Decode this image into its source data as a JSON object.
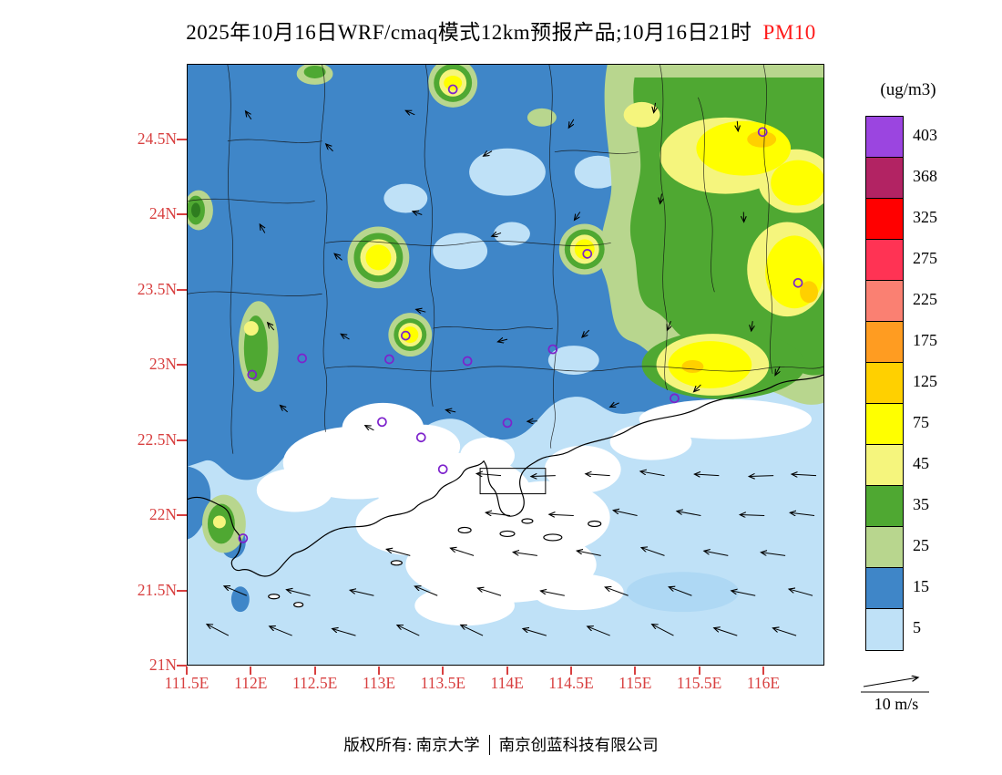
{
  "title": {
    "prefix": "2025年10月16日WRF/cmaq模式12km预报产品;10月16日21时",
    "pollutant": "PM10"
  },
  "axes": {
    "lat_labels": [
      "24.5N",
      "24N",
      "23.5N",
      "23N",
      "22.5N",
      "22N",
      "21.5N",
      "21N"
    ],
    "lon_labels": [
      "111.5E",
      "112E",
      "112.5E",
      "113E",
      "113.5E",
      "114E",
      "114.5E",
      "115E",
      "115.5E",
      "116E"
    ]
  },
  "legend": {
    "unit": "(ug/m3)",
    "levels": [
      "403",
      "368",
      "325",
      "275",
      "225",
      "175",
      "125",
      "75",
      "45",
      "35",
      "25",
      "15",
      "5"
    ],
    "colors": [
      "#9b45e0",
      "#b22363",
      "#ff0000",
      "#ff3354",
      "#fa8072",
      "#ff9c21",
      "#ffd000",
      "#ffff00",
      "#f5f57d",
      "#4fa832",
      "#b8d68e",
      "#3f86c8",
      "#bfe1f7"
    ]
  },
  "wind_scale": {
    "label": "10 m/s"
  },
  "footer": {
    "owner": "版权所有: 南京大学",
    "company": "南京创蓝科技有限公司"
  },
  "colors": {
    "axis_label": "#d84040",
    "pollutant_highlight": "#ff1a1a",
    "map_low_white": "#ffffff",
    "map_base_5_15": "#bfe1f7",
    "map_15_25": "#3f86c8",
    "map_25_35": "#b8d68e",
    "map_35_45": "#4fa832",
    "map_45_75": "#f5f57d",
    "map_75_125": "#ffff00",
    "map_125_175": "#ffd000",
    "station_marker": "#7d22cc"
  }
}
